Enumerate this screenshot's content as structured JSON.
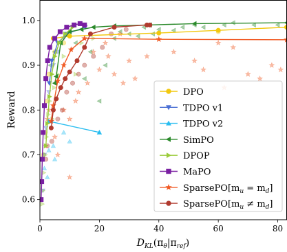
{
  "chart_data": {
    "type": "line",
    "title": "",
    "xlabel": "D_KL(π_θ|π_ref)",
    "ylabel": "Reward",
    "xlim": [
      0,
      83
    ],
    "ylim": [
      0.555,
      1.045
    ],
    "xticks": [
      0,
      20,
      40,
      60,
      80
    ],
    "xtick_labels": [
      "0",
      "20",
      "40",
      "60",
      "80"
    ],
    "yticks": [
      0.6,
      0.7,
      0.8,
      0.9,
      1.0
    ],
    "ytick_labels": [
      "0.6",
      "0.7",
      "0.8",
      "0.9",
      "1.0"
    ],
    "grid": false,
    "legend": "center-right",
    "series": [
      {
        "name": "DPO",
        "color": "#f2c80f",
        "marker": "circle",
        "line": [
          [
            4.5,
            0.96
          ],
          [
            10,
            0.965
          ],
          [
            40,
            0.972
          ],
          [
            60,
            0.978
          ],
          [
            83,
            0.985
          ]
        ],
        "points": [
          [
            1.2,
            0.7
          ],
          [
            1.8,
            0.75
          ],
          [
            2.2,
            0.82
          ],
          [
            3.0,
            0.88
          ],
          [
            5,
            0.93
          ],
          [
            8,
            0.95
          ],
          [
            60,
            0.975
          ]
        ]
      },
      {
        "name": "TDPO v1",
        "color": "#4a6fd4",
        "marker": "triangle-down",
        "line": [
          [
            3.2,
            0.86
          ],
          [
            4.0,
            0.91
          ],
          [
            6.0,
            0.95
          ],
          [
            9.0,
            0.97
          ],
          [
            15.2,
            0.985
          ]
        ],
        "points": [
          [
            1.0,
            0.62
          ],
          [
            1.5,
            0.7
          ],
          [
            2.0,
            0.76
          ],
          [
            3.0,
            0.84
          ],
          [
            4.5,
            0.9
          ],
          [
            6,
            0.93
          ],
          [
            8,
            0.96
          ]
        ]
      },
      {
        "name": "TDPO v2",
        "color": "#29bdf0",
        "marker": "triangle-up",
        "line": [
          [
            3.0,
            0.775
          ],
          [
            20.0,
            0.75
          ]
        ],
        "points": [
          [
            1.5,
            0.67
          ],
          [
            3.0,
            0.71
          ],
          [
            4.5,
            0.72
          ],
          [
            8.0,
            0.75
          ],
          [
            10.0,
            0.73
          ],
          [
            2.5,
            0.65
          ],
          [
            5.0,
            0.69
          ]
        ]
      },
      {
        "name": "SimPO",
        "color": "#2b8a2b",
        "marker": "triangle-left",
        "line": [
          [
            5.0,
            0.86
          ],
          [
            5.5,
            0.875
          ],
          [
            7.0,
            0.95
          ],
          [
            10.0,
            0.975
          ],
          [
            14.0,
            0.98
          ],
          [
            18.0,
            0.985
          ],
          [
            25.0,
            0.988
          ],
          [
            37.0,
            0.99
          ],
          [
            52.0,
            0.993
          ],
          [
            83.0,
            0.995
          ]
        ],
        "points": [
          [
            3.5,
            0.9
          ],
          [
            5.0,
            0.93
          ],
          [
            12.0,
            0.95
          ],
          [
            17.0,
            0.93
          ],
          [
            22.0,
            0.9
          ],
          [
            30.0,
            0.97
          ],
          [
            35.0,
            0.985
          ],
          [
            40.0,
            0.98
          ],
          [
            45.0,
            0.978
          ],
          [
            48.0,
            0.985
          ],
          [
            52.0,
            0.99
          ],
          [
            55.0,
            0.985
          ],
          [
            62.0,
            0.99
          ],
          [
            65.0,
            0.995
          ],
          [
            72.0,
            0.99
          ],
          [
            80.0,
            0.99
          ],
          [
            20.0,
            0.82
          ],
          [
            15.0,
            0.87
          ],
          [
            25.0,
            0.96
          ],
          [
            27.0,
            0.975
          ],
          [
            33.0,
            0.965
          ],
          [
            38.0,
            0.97
          ]
        ]
      },
      {
        "name": "DPOP",
        "color": "#9bcb3b",
        "marker": "triangle-right",
        "line": [
          [
            2.0,
            0.72
          ],
          [
            2.5,
            0.77
          ],
          [
            3.2,
            0.83
          ],
          [
            4.0,
            0.88
          ],
          [
            5.0,
            0.92
          ],
          [
            6.5,
            0.95
          ],
          [
            8.5,
            0.97
          ],
          [
            11.0,
            0.985
          ]
        ],
        "points": [
          [
            0.8,
            0.59
          ],
          [
            1.0,
            0.62
          ],
          [
            1.3,
            0.66
          ],
          [
            1.8,
            0.7
          ],
          [
            2.2,
            0.74
          ],
          [
            2.8,
            0.79
          ],
          [
            3.3,
            0.82
          ],
          [
            4.2,
            0.78
          ],
          [
            4.8,
            0.85
          ],
          [
            6.0,
            0.88
          ],
          [
            8.0,
            0.92
          ],
          [
            14.0,
            0.95
          ],
          [
            18.0,
            0.96
          ],
          [
            12.0,
            0.88
          ]
        ]
      },
      {
        "name": "MaPO",
        "color": "#7a1fa2",
        "marker": "square",
        "line": [
          [
            0.4,
            0.6
          ],
          [
            0.6,
            0.64
          ],
          [
            0.8,
            0.69
          ],
          [
            1.1,
            0.75
          ],
          [
            1.5,
            0.81
          ],
          [
            2.0,
            0.87
          ],
          [
            2.6,
            0.91
          ],
          [
            3.3,
            0.94
          ],
          [
            5.0,
            0.96
          ],
          [
            6.8,
            0.975
          ],
          [
            9.0,
            0.985
          ],
          [
            11.5,
            0.99
          ],
          [
            13.5,
            0.993
          ],
          [
            15.0,
            0.99
          ]
        ],
        "points": []
      },
      {
        "name": "SparsePO[m_u = m_d]",
        "color": "#f15a24",
        "marker": "star",
        "line": [
          [
            3.8,
            0.775
          ],
          [
            4.5,
            0.81
          ],
          [
            6.0,
            0.865
          ],
          [
            8.0,
            0.9
          ],
          [
            10.5,
            0.935
          ],
          [
            15.0,
            0.96
          ],
          [
            40.0,
            0.958
          ],
          [
            83.0,
            0.957
          ]
        ],
        "points": [
          [
            2.0,
            0.72
          ],
          [
            2.5,
            0.78
          ],
          [
            3.0,
            0.8
          ],
          [
            5.0,
            0.74
          ],
          [
            8.0,
            0.8
          ],
          [
            10.0,
            0.78
          ],
          [
            12.0,
            0.82
          ],
          [
            13.0,
            0.84
          ],
          [
            16.0,
            0.86
          ],
          [
            18.0,
            0.93
          ],
          [
            20.0,
            0.89
          ],
          [
            22.0,
            0.95
          ],
          [
            25.0,
            0.88
          ],
          [
            28.0,
            0.86
          ],
          [
            30.0,
            0.91
          ],
          [
            32.0,
            0.87
          ],
          [
            36.0,
            0.92
          ],
          [
            45.0,
            0.93
          ],
          [
            52.0,
            0.91
          ],
          [
            55.0,
            0.89
          ],
          [
            60.0,
            0.95
          ],
          [
            62.0,
            0.85
          ],
          [
            65.0,
            0.94
          ],
          [
            70.0,
            0.88
          ],
          [
            74.0,
            0.87
          ],
          [
            78.0,
            0.9
          ],
          [
            81.0,
            0.89
          ],
          [
            10.0,
            0.65
          ],
          [
            6.0,
            0.7
          ],
          [
            23.0,
            0.92
          ],
          [
            27.0,
            0.97
          ]
        ]
      },
      {
        "name": "SparsePO[m_u ≠ m_d]",
        "color": "#b03a2e",
        "marker": "circle",
        "line": [
          [
            3.8,
            0.76
          ],
          [
            4.5,
            0.8
          ],
          [
            5.5,
            0.825
          ],
          [
            7.0,
            0.85
          ],
          [
            8.5,
            0.87
          ],
          [
            10.0,
            0.885
          ],
          [
            12.5,
            0.91
          ],
          [
            15.0,
            0.94
          ],
          [
            17.0,
            0.97
          ],
          [
            25.0,
            0.985
          ],
          [
            36.0,
            0.99
          ],
          [
            37.0,
            0.99
          ]
        ],
        "points": [
          [
            2.0,
            0.69
          ],
          [
            2.5,
            0.72
          ],
          [
            4.0,
            0.73
          ],
          [
            6.0,
            0.78
          ],
          [
            7.5,
            0.8
          ],
          [
            9.0,
            0.84
          ],
          [
            11.0,
            0.86
          ],
          [
            13.0,
            0.88
          ],
          [
            15.0,
            0.9
          ],
          [
            18.0,
            0.92
          ],
          [
            21.0,
            0.94
          ],
          [
            24.0,
            0.97
          ],
          [
            29.0,
            0.98
          ]
        ]
      }
    ]
  },
  "legend": {
    "items": [
      {
        "main": "DPO",
        "sub": ""
      },
      {
        "main": "TDPO v1",
        "sub": ""
      },
      {
        "main": "TDPO v2",
        "sub": ""
      },
      {
        "main": "SimPO",
        "sub": ""
      },
      {
        "main": "DPOP",
        "sub": ""
      },
      {
        "main": "MaPO",
        "sub": ""
      },
      {
        "main": "SparsePO[m",
        "sub": "u",
        "mid": " = m",
        "sub2": "d",
        "end": "]"
      },
      {
        "main": "SparsePO[m",
        "sub": "u",
        "mid": " ≠ m",
        "sub2": "d",
        "end": "]"
      }
    ]
  },
  "axis_text": {
    "ylabel": "Reward",
    "xlabel_main": "D",
    "xlabel_sub": "KL",
    "xlabel_paren_open": "(π",
    "xlabel_theta": "θ",
    "xlabel_bar": "|π",
    "xlabel_ref": "ref",
    "xlabel_paren_close": ")"
  }
}
